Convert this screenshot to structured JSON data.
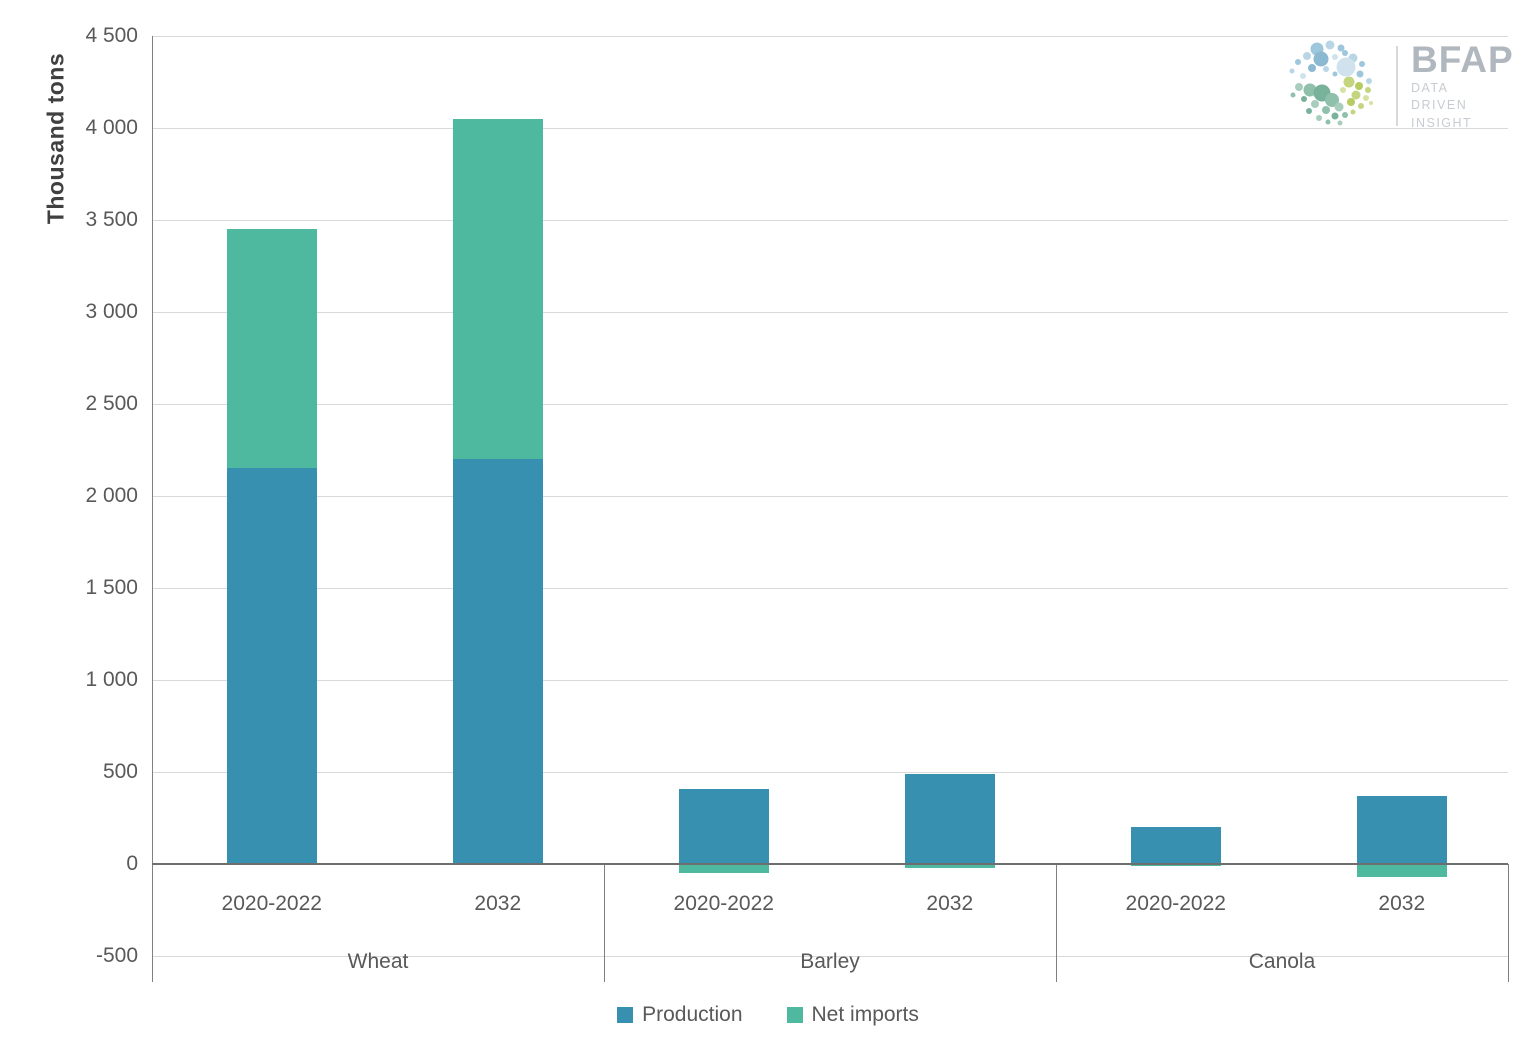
{
  "chart_data": {
    "type": "bar",
    "stacked": true,
    "title": "",
    "xlabel": "",
    "ylabel": "Thousand tons",
    "unit": "thousand tons",
    "ylim": [
      -500,
      4500
    ],
    "ytick_step": 500,
    "ytick_labels": [
      "4 500",
      "4 000",
      "3 500",
      "3 000",
      "2 500",
      "2 000",
      "1 500",
      "1 000",
      "500",
      "0",
      "-500"
    ],
    "grid": true,
    "legend_position": "bottom",
    "groups": [
      "Wheat",
      "Barley",
      "Canola"
    ],
    "categories": [
      "2020-2022",
      "2032"
    ],
    "series": [
      {
        "name": "Production",
        "color": "#3790b0",
        "values": [
          [
            2150,
            2200
          ],
          [
            410,
            490
          ],
          [
            200,
            370
          ]
        ]
      },
      {
        "name": "Net imports",
        "color": "#4eb99e",
        "values": [
          [
            1300,
            1850
          ],
          [
            -50,
            -20
          ],
          [
            -10,
            -70
          ]
        ]
      }
    ]
  },
  "colors": {
    "production": "#3790b0",
    "net_imports": "#4eb99e",
    "gridline": "#d9d9d9",
    "axis": "#6e6e6e",
    "tick_text": "#595959",
    "axis_title_text": "#404040"
  },
  "logo": {
    "brand": "BFAP",
    "tagline_line1": "DATA",
    "tagline_line2": "DRIVEN",
    "tagline_line3": "INSIGHT"
  }
}
